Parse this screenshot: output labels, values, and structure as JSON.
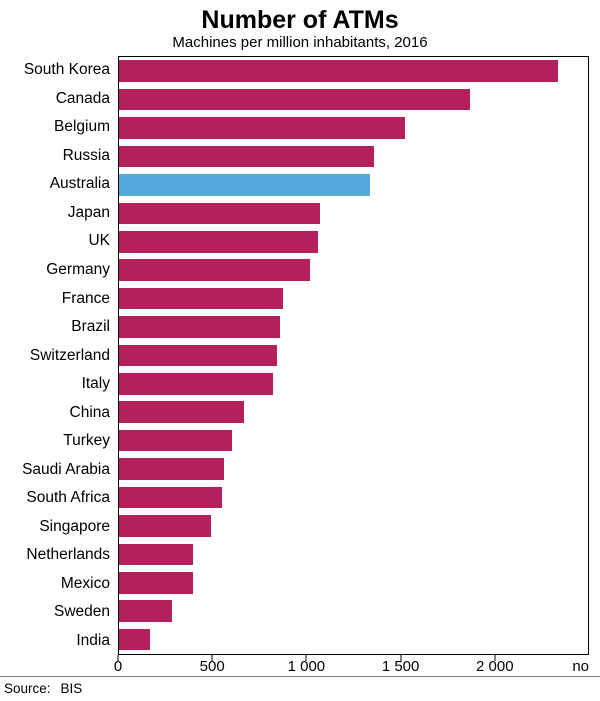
{
  "header": {
    "title": "Number of ATMs",
    "subtitle": "Machines per million inhabitants, 2016"
  },
  "chart_data": {
    "type": "bar",
    "orientation": "horizontal",
    "title": "Number of ATMs",
    "subtitle": "Machines per million inhabitants, 2016",
    "categories": [
      "South Korea",
      "Canada",
      "Belgium",
      "Russia",
      "Australia",
      "Japan",
      "UK",
      "Germany",
      "France",
      "Brazil",
      "Switzerland",
      "Italy",
      "China",
      "Turkey",
      "Saudi Arabia",
      "South Africa",
      "Singapore",
      "Netherlands",
      "Mexico",
      "Sweden",
      "India"
    ],
    "values": [
      2340,
      1870,
      1525,
      1360,
      1340,
      1070,
      1060,
      1020,
      875,
      860,
      840,
      820,
      665,
      600,
      560,
      550,
      490,
      395,
      395,
      285,
      165
    ],
    "highlight_category": "Australia",
    "bar_color": "#B4205B",
    "highlight_color": "#53A9DB",
    "xlim": [
      0,
      2500
    ],
    "x_ticks": [
      {
        "value": 0,
        "label": "0"
      },
      {
        "value": 500,
        "label": "500"
      },
      {
        "value": 1000,
        "label": "1 000"
      },
      {
        "value": 1500,
        "label": "1 500"
      },
      {
        "value": 2000,
        "label": "2 000"
      }
    ],
    "unit_label": "no",
    "grid": false,
    "legend": false
  },
  "footer": {
    "source_label": "Source:",
    "source_value": "BIS"
  }
}
